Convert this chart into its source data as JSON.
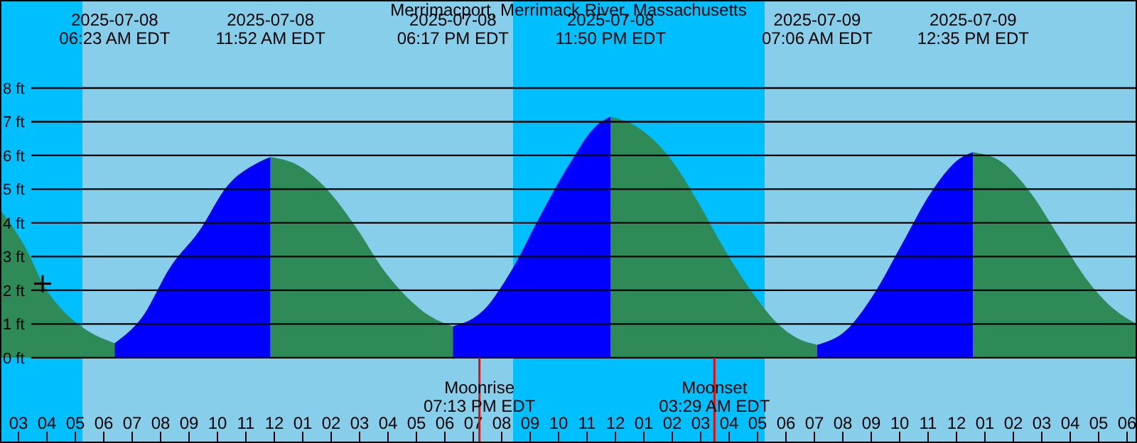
{
  "chart_data": {
    "type": "area",
    "title": "Merrimacport, Merrimack River, Massachusetts",
    "xlim": [
      "2025-07-08T02:21",
      "2025-07-09T18:21"
    ],
    "ylim": [
      -2.53,
      10.61
    ],
    "xticks": [
      {
        "value": "2025-07-08T03:00",
        "label": "03"
      },
      {
        "value": "2025-07-08T04:00",
        "label": "04"
      },
      {
        "value": "2025-07-08T05:00",
        "label": "05"
      },
      {
        "value": "2025-07-08T06:00",
        "label": "06"
      },
      {
        "value": "2025-07-08T07:00",
        "label": "07"
      },
      {
        "value": "2025-07-08T08:00",
        "label": "08"
      },
      {
        "value": "2025-07-08T09:00",
        "label": "09"
      },
      {
        "value": "2025-07-08T10:00",
        "label": "10"
      },
      {
        "value": "2025-07-08T11:00",
        "label": "11"
      },
      {
        "value": "2025-07-08T12:00",
        "label": "12"
      },
      {
        "value": "2025-07-08T13:00",
        "label": "01"
      },
      {
        "value": "2025-07-08T14:00",
        "label": "02"
      },
      {
        "value": "2025-07-08T15:00",
        "label": "03"
      },
      {
        "value": "2025-07-08T16:00",
        "label": "04"
      },
      {
        "value": "2025-07-08T17:00",
        "label": "05"
      },
      {
        "value": "2025-07-08T18:00",
        "label": "06"
      },
      {
        "value": "2025-07-08T19:00",
        "label": "07"
      },
      {
        "value": "2025-07-08T20:00",
        "label": "08"
      },
      {
        "value": "2025-07-08T21:00",
        "label": "09"
      },
      {
        "value": "2025-07-08T22:00",
        "label": "10"
      },
      {
        "value": "2025-07-08T23:00",
        "label": "11"
      },
      {
        "value": "2025-07-09T00:00",
        "label": "12"
      },
      {
        "value": "2025-07-09T01:00",
        "label": "01"
      },
      {
        "value": "2025-07-09T02:00",
        "label": "02"
      },
      {
        "value": "2025-07-09T03:00",
        "label": "03"
      },
      {
        "value": "2025-07-09T04:00",
        "label": "04"
      },
      {
        "value": "2025-07-09T05:00",
        "label": "05"
      },
      {
        "value": "2025-07-09T06:00",
        "label": "06"
      },
      {
        "value": "2025-07-09T07:00",
        "label": "07"
      },
      {
        "value": "2025-07-09T08:00",
        "label": "08"
      },
      {
        "value": "2025-07-09T09:00",
        "label": "09"
      },
      {
        "value": "2025-07-09T10:00",
        "label": "10"
      },
      {
        "value": "2025-07-09T11:00",
        "label": "11"
      },
      {
        "value": "2025-07-09T12:00",
        "label": "12"
      },
      {
        "value": "2025-07-09T13:00",
        "label": "01"
      },
      {
        "value": "2025-07-09T14:00",
        "label": "02"
      },
      {
        "value": "2025-07-09T15:00",
        "label": "03"
      },
      {
        "value": "2025-07-09T16:00",
        "label": "04"
      },
      {
        "value": "2025-07-09T17:00",
        "label": "05"
      },
      {
        "value": "2025-07-09T18:00",
        "label": "06"
      }
    ],
    "yticks": [
      {
        "value": 0,
        "label": "0 ft"
      },
      {
        "value": 1,
        "label": "1 ft"
      },
      {
        "value": 2,
        "label": "2 ft"
      },
      {
        "value": 3,
        "label": "3 ft"
      },
      {
        "value": 4,
        "label": "4 ft"
      },
      {
        "value": 5,
        "label": "5 ft"
      },
      {
        "value": 6,
        "label": "6 ft"
      },
      {
        "value": 7,
        "label": "7 ft"
      },
      {
        "value": 8,
        "label": "8 ft"
      }
    ],
    "grid": "y",
    "bands": [
      {
        "axis": "x",
        "from": "2025-07-08T02:21",
        "to": "2025-07-08T05:15",
        "color": "#00bfff"
      },
      {
        "axis": "x",
        "from": "2025-07-08T05:15",
        "to": "2025-07-08T20:24",
        "color": "#87ceeb"
      },
      {
        "axis": "x",
        "from": "2025-07-08T20:24",
        "to": "2025-07-09T05:15",
        "color": "#00bfff"
      },
      {
        "axis": "x",
        "from": "2025-07-09T05:15",
        "to": "2025-07-09T18:21",
        "color": "#87ceeb"
      }
    ],
    "ref_lines": [
      {
        "axis": "x",
        "value": "2025-07-08T19:13",
        "label": "Moonrise\n07:13 PM EDT",
        "color": "#ff0000"
      },
      {
        "axis": "x",
        "value": "2025-07-09T03:29",
        "label": "Moonset\n03:29 AM EDT",
        "color": "#ff0000"
      }
    ],
    "series": [
      {
        "color": "#2e8b57",
        "x": [
          "2025-07-08T02:21",
          "2025-07-08T03:21",
          "2025-07-08T03:51",
          "2025-07-08T04:21",
          "2025-07-08T05:15",
          "2025-07-08T06:23"
        ],
        "values": [
          4.4,
          3.1,
          2.2,
          1.6,
          0.9,
          0.43
        ]
      },
      {
        "color": "#0000ff",
        "x": [
          "2025-07-08T06:23",
          "2025-07-08T07:21",
          "2025-07-08T08:21",
          "2025-07-08T09:21",
          "2025-07-08T10:21",
          "2025-07-08T11:21",
          "2025-07-08T11:52"
        ],
        "values": [
          0.43,
          1.2,
          2.7,
          3.75,
          5.1,
          5.75,
          5.95
        ]
      },
      {
        "color": "#2e8b57",
        "x": [
          "2025-07-08T11:52",
          "2025-07-08T12:51",
          "2025-07-08T13:51",
          "2025-07-08T14:51",
          "2025-07-08T15:51",
          "2025-07-08T16:51",
          "2025-07-08T17:21",
          "2025-07-08T18:17"
        ],
        "values": [
          5.95,
          5.7,
          5.0,
          3.9,
          2.6,
          1.65,
          1.3,
          0.93
        ]
      },
      {
        "color": "#0000ff",
        "x": [
          "2025-07-08T18:17",
          "2025-07-08T19:21",
          "2025-07-08T20:21",
          "2025-07-08T21:21",
          "2025-07-08T22:21",
          "2025-07-08T23:21",
          "2025-07-08T23:50"
        ],
        "values": [
          0.93,
          1.4,
          2.6,
          4.2,
          5.7,
          6.9,
          7.15
        ]
      },
      {
        "color": "#2e8b57",
        "x": [
          "2025-07-08T23:50",
          "2025-07-09T00:51",
          "2025-07-09T01:51",
          "2025-07-09T02:51",
          "2025-07-09T03:51",
          "2025-07-09T04:51",
          "2025-07-09T05:51",
          "2025-07-09T06:21",
          "2025-07-09T07:06"
        ],
        "values": [
          7.15,
          6.8,
          6.0,
          4.7,
          3.2,
          1.9,
          0.9,
          0.6,
          0.38
        ]
      },
      {
        "color": "#0000ff",
        "x": [
          "2025-07-09T07:06",
          "2025-07-09T08:06",
          "2025-07-09T09:06",
          "2025-07-09T10:06",
          "2025-07-09T11:06",
          "2025-07-09T12:06",
          "2025-07-09T12:35"
        ],
        "values": [
          0.38,
          0.8,
          1.9,
          3.4,
          4.9,
          5.9,
          6.1
        ]
      },
      {
        "color": "#2e8b57",
        "x": [
          "2025-07-09T12:35",
          "2025-07-09T13:36",
          "2025-07-09T14:36",
          "2025-07-09T15:36",
          "2025-07-09T16:36",
          "2025-07-09T17:36",
          "2025-07-09T18:21"
        ],
        "values": [
          6.1,
          5.8,
          4.9,
          3.6,
          2.3,
          1.4,
          1.0
        ]
      },
      {
        "type": "scatter",
        "color": "#000000",
        "marker": "cross",
        "x": [
          "2025-07-08T03:51"
        ],
        "values": [
          2.2
        ]
      }
    ],
    "annotations": [
      "2025-07-08\n06:23 AM EDT",
      "2025-07-08\n11:52 AM EDT",
      "2025-07-08\n06:17 PM EDT",
      "2025-07-08\n11:50 PM EDT",
      "2025-07-09\n07:06 AM EDT",
      "2025-07-09\n12:35 PM EDT"
    ]
  }
}
